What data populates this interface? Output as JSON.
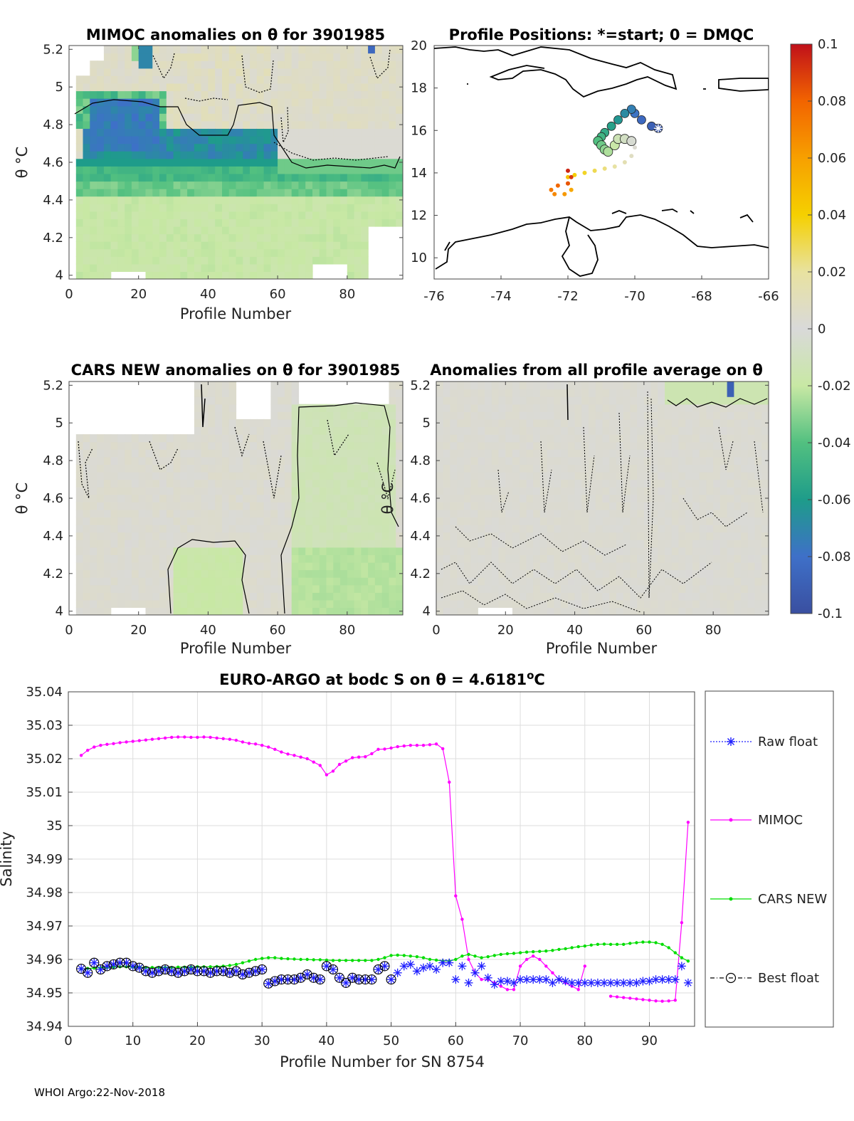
{
  "footer": "WHOI Argo:22-Nov-2018",
  "colors": {
    "raw": "#1f1fff",
    "mimoc": "#ff00ff",
    "cars": "#00dd00",
    "best": "#000000",
    "land": "#000000",
    "grid": "#dddddd"
  },
  "colormap": [
    {
      "v": -0.1,
      "c": "#3a4fa0"
    },
    {
      "v": -0.08,
      "c": "#3e70c8"
    },
    {
      "v": -0.06,
      "c": "#1e9c8a"
    },
    {
      "v": -0.04,
      "c": "#52c080"
    },
    {
      "v": -0.02,
      "c": "#c8e8a4"
    },
    {
      "v": 0,
      "c": "#d9d9d9"
    },
    {
      "v": 0.02,
      "c": "#e8e2a0"
    },
    {
      "v": 0.04,
      "c": "#f5d000"
    },
    {
      "v": 0.06,
      "c": "#f7a000"
    },
    {
      "v": 0.08,
      "c": "#f26400"
    },
    {
      "v": 0.1,
      "c": "#c0101a"
    }
  ],
  "colorbar": {
    "ticks": [
      "0.1",
      "0.08",
      "0.06",
      "0.04",
      "0.02",
      "0",
      "-0.02",
      "-0.04",
      "-0.06",
      "-0.08",
      "-0.1"
    ]
  },
  "chart_data": [
    {
      "id": "mimoc",
      "type": "heatmap",
      "title": "MIMOC anomalies on θ  for 3901985",
      "xlabel": "Profile Number",
      "ylabel": "θ °C",
      "xlim": [
        0,
        96
      ],
      "ylim": [
        3.98,
        5.22
      ],
      "xticks": [
        "0",
        "20",
        "40",
        "60",
        "80"
      ],
      "yticks": [
        "4",
        "4.2",
        "4.4",
        "4.6",
        "4.8",
        "5",
        "5.2"
      ]
    },
    {
      "id": "map",
      "type": "scatter",
      "title": "Profile Positions: *=start; 0 = DMQC",
      "xlim": [
        -76,
        -66
      ],
      "ylim": [
        9,
        20
      ],
      "xticks": [
        "-76",
        "-74",
        "-72",
        "-70",
        "-68",
        "-66"
      ],
      "yticks": [
        "10",
        "12",
        "14",
        "16",
        "18",
        "20"
      ],
      "track": [
        [
          -69.3,
          16.1
        ],
        [
          -69.5,
          16.2
        ],
        [
          -69.8,
          16.5
        ],
        [
          -70.0,
          16.8
        ],
        [
          -70.1,
          17.0
        ],
        [
          -70.3,
          16.8
        ],
        [
          -70.5,
          16.5
        ],
        [
          -70.7,
          16.2
        ],
        [
          -70.9,
          15.9
        ],
        [
          -71.0,
          15.7
        ],
        [
          -71.1,
          15.5
        ],
        [
          -71.0,
          15.3
        ],
        [
          -70.9,
          15.1
        ],
        [
          -70.8,
          15.0
        ],
        [
          -70.6,
          15.3
        ],
        [
          -70.5,
          15.6
        ],
        [
          -70.3,
          15.6
        ],
        [
          -70.1,
          15.5
        ],
        [
          -70.0,
          15.2
        ],
        [
          -70.1,
          14.8
        ],
        [
          -70.3,
          14.5
        ],
        [
          -70.6,
          14.3
        ],
        [
          -70.9,
          14.2
        ],
        [
          -71.2,
          14.1
        ],
        [
          -71.5,
          14.0
        ],
        [
          -71.8,
          13.9
        ],
        [
          -72.0,
          13.8
        ],
        [
          -72.0,
          13.5
        ],
        [
          -71.9,
          13.2
        ],
        [
          -72.1,
          13.0
        ],
        [
          -72.4,
          13.0
        ],
        [
          -72.5,
          13.2
        ],
        [
          -72.3,
          13.4
        ],
        [
          -72.0,
          13.5
        ],
        [
          -71.9,
          13.8
        ],
        [
          -72.0,
          14.1
        ]
      ]
    },
    {
      "id": "cars",
      "type": "heatmap",
      "title": "CARS NEW anomalies on θ for 3901985",
      "xlabel": "Profile Number",
      "ylabel": "θ °C",
      "xlim": [
        0,
        96
      ],
      "ylim": [
        3.98,
        5.22
      ],
      "xticks": [
        "0",
        "20",
        "40",
        "60",
        "80"
      ],
      "yticks": [
        "4",
        "4.2",
        "4.4",
        "4.6",
        "4.8",
        "5",
        "5.2"
      ]
    },
    {
      "id": "avg",
      "type": "heatmap",
      "title": "Anomalies from all profile average on θ",
      "xlabel": "Profile Number",
      "ylabel": "θ °C",
      "xlim": [
        0,
        96
      ],
      "ylim": [
        3.98,
        5.22
      ],
      "xticks": [
        "0",
        "20",
        "40",
        "60",
        "80"
      ],
      "yticks": [
        "4",
        "4.2",
        "4.4",
        "4.6",
        "4.8",
        "5",
        "5.2"
      ]
    },
    {
      "id": "salinity",
      "type": "line",
      "title": "EURO-ARGO at bodc S on θ = 4.6181",
      "title_sup": "o",
      "title_unit": "C",
      "xlabel": "Profile Number for SN 8754",
      "ylabel": "Salinity",
      "xlim": [
        0,
        97
      ],
      "ylim": [
        34.94,
        35.04
      ],
      "xticks": [
        "0",
        "10",
        "20",
        "30",
        "40",
        "50",
        "60",
        "70",
        "80",
        "90"
      ],
      "yticks": [
        "34.94",
        "34.95",
        "34.96",
        "34.97",
        "34.98",
        "34.99",
        "35",
        "35.01",
        "35.02",
        "35.03",
        "35.04"
      ],
      "legend": [
        "Raw float",
        "MIMOC",
        "CARS NEW",
        "Best float"
      ],
      "series": [
        {
          "name": "MIMOC",
          "x": [
            2,
            3,
            4,
            5,
            6,
            7,
            8,
            9,
            10,
            11,
            12,
            13,
            14,
            15,
            16,
            17,
            18,
            19,
            20,
            21,
            22,
            23,
            24,
            25,
            26,
            27,
            28,
            29,
            30,
            31,
            32,
            33,
            34,
            35,
            36,
            37,
            38,
            39,
            40,
            41,
            42,
            43,
            44,
            45,
            46,
            47,
            48,
            49,
            50,
            51,
            52,
            53,
            54,
            55,
            56,
            57,
            58,
            59,
            60,
            61,
            62,
            63,
            64,
            65,
            66,
            67,
            68,
            69,
            70,
            71,
            72,
            73,
            74,
            75,
            76,
            77,
            78,
            79,
            80,
            null,
            84,
            85,
            86,
            87,
            88,
            89,
            90,
            91,
            92,
            93,
            94,
            95,
            96
          ],
          "y": [
            35.021,
            35.0225,
            35.0235,
            35.024,
            35.0243,
            35.0245,
            35.0248,
            35.025,
            35.0252,
            35.0254,
            35.0256,
            35.0258,
            35.026,
            35.0262,
            35.0264,
            35.0265,
            35.0265,
            35.0264,
            35.0264,
            35.0265,
            35.0264,
            35.0262,
            35.026,
            35.0258,
            35.0255,
            35.025,
            35.0246,
            35.0244,
            35.024,
            35.0235,
            35.0228,
            35.022,
            35.0214,
            35.021,
            35.0205,
            35.02,
            35.019,
            35.018,
            35.0152,
            35.0163,
            35.0183,
            35.0193,
            35.0203,
            35.0205,
            35.0206,
            35.0215,
            35.0228,
            35.0229,
            35.0232,
            35.0236,
            35.0238,
            35.024,
            35.024,
            35.024,
            35.0242,
            35.0244,
            35.023,
            35.013,
            34.979,
            34.972,
            34.96,
            34.956,
            34.954,
            34.954,
            34.953,
            34.952,
            34.951,
            34.951,
            34.958,
            34.96,
            34.961,
            34.96,
            34.958,
            34.956,
            34.954,
            34.953,
            34.952,
            34.951,
            34.958,
            null,
            34.949,
            34.9488,
            34.9486,
            34.9484,
            34.9482,
            34.948,
            34.9478,
            34.9476,
            34.9475,
            34.9476,
            34.9478,
            34.971,
            35.001
          ]
        },
        {
          "name": "CARS NEW",
          "x": [
            2,
            3,
            4,
            5,
            6,
            7,
            8,
            9,
            10,
            11,
            12,
            13,
            14,
            15,
            16,
            17,
            18,
            19,
            20,
            21,
            22,
            23,
            24,
            25,
            26,
            27,
            28,
            29,
            30,
            31,
            32,
            33,
            34,
            35,
            36,
            37,
            38,
            39,
            40,
            41,
            42,
            43,
            44,
            45,
            46,
            47,
            48,
            49,
            50,
            51,
            52,
            53,
            54,
            55,
            56,
            57,
            58,
            59,
            60,
            61,
            62,
            63,
            64,
            65,
            66,
            67,
            68,
            69,
            70,
            71,
            72,
            73,
            74,
            75,
            76,
            77,
            78,
            79,
            80,
            81,
            82,
            83,
            84,
            85,
            86,
            87,
            88,
            89,
            90,
            91,
            92,
            93,
            94,
            95,
            96
          ],
          "y": [
            34.9572,
            34.9573,
            34.9574,
            34.9575,
            34.9576,
            34.9577,
            34.9578,
            34.9578,
            34.9577,
            34.9577,
            34.9576,
            34.9576,
            34.9576,
            34.9576,
            34.9576,
            34.9577,
            34.9577,
            34.9577,
            34.9578,
            34.9578,
            34.9578,
            34.9579,
            34.958,
            34.9582,
            34.9585,
            34.959,
            34.9595,
            34.96,
            34.9603,
            34.9605,
            34.9605,
            34.9603,
            34.9602,
            34.9601,
            34.96,
            34.96,
            34.9599,
            34.9599,
            34.9598,
            34.9597,
            34.9597,
            34.9597,
            34.9597,
            34.9597,
            34.9597,
            34.9597,
            34.96,
            34.9605,
            34.9612,
            34.9613,
            34.9612,
            34.961,
            34.9608,
            34.9605,
            34.96,
            34.9598,
            34.9595,
            34.9595,
            34.96,
            34.961,
            34.9615,
            34.961,
            34.9605,
            34.9608,
            34.9612,
            34.9615,
            34.9617,
            34.9618,
            34.962,
            34.9622,
            34.9623,
            34.9624,
            34.9625,
            34.9627,
            34.963,
            34.9632,
            34.9635,
            34.9638,
            34.964,
            34.9643,
            34.9645,
            34.9646,
            34.9645,
            34.9645,
            34.9645,
            34.9648,
            34.965,
            34.9652,
            34.9652,
            34.965,
            34.9645,
            34.9635,
            34.962,
            34.9605,
            34.9595
          ]
        },
        {
          "name": "Raw float",
          "x": [
            2,
            3,
            4,
            5,
            6,
            7,
            8,
            9,
            10,
            11,
            12,
            13,
            14,
            15,
            16,
            17,
            18,
            19,
            20,
            21,
            22,
            23,
            24,
            25,
            26,
            27,
            28,
            29,
            30,
            31,
            32,
            33,
            34,
            35,
            36,
            37,
            38,
            39,
            40,
            41,
            42,
            43,
            44,
            45,
            46,
            47,
            48,
            49,
            50,
            51,
            52,
            53,
            54,
            55,
            56,
            57,
            58,
            59,
            60,
            61,
            62,
            63,
            64,
            65,
            66,
            67,
            68,
            69,
            70,
            71,
            72,
            73,
            74,
            75,
            76,
            77,
            78,
            79,
            80,
            81,
            82,
            83,
            84,
            85,
            86,
            87,
            88,
            89,
            90,
            91,
            92,
            93,
            94,
            95,
            96
          ],
          "y": [
            34.9572,
            34.956,
            34.959,
            34.957,
            34.958,
            34.9585,
            34.959,
            34.959,
            34.958,
            34.9575,
            34.9565,
            34.956,
            34.9565,
            34.957,
            34.9565,
            34.956,
            34.9565,
            34.957,
            34.9565,
            34.9565,
            34.956,
            34.9565,
            34.9565,
            34.956,
            34.9565,
            34.9555,
            34.956,
            34.9565,
            34.957,
            34.9528,
            34.9535,
            34.954,
            34.954,
            34.954,
            34.9545,
            34.9555,
            34.9545,
            34.954,
            34.958,
            34.957,
            34.9545,
            34.953,
            34.9545,
            34.954,
            34.954,
            34.954,
            34.957,
            34.958,
            34.954,
            34.956,
            34.958,
            34.9585,
            34.9565,
            34.9575,
            34.958,
            34.957,
            34.959,
            34.959,
            34.954,
            34.958,
            34.953,
            34.956,
            34.958,
            34.9545,
            34.9525,
            34.9535,
            34.9535,
            34.953,
            34.954,
            34.954,
            34.954,
            34.954,
            34.954,
            34.953,
            34.954,
            34.9535,
            34.953,
            34.953,
            34.953,
            34.953,
            34.953,
            34.953,
            34.953,
            34.953,
            34.953,
            34.953,
            34.953,
            34.9535,
            34.9535,
            34.954,
            34.954,
            34.954,
            34.954,
            34.958,
            34.953
          ]
        },
        {
          "name": "Best float",
          "x": [
            2,
            3,
            4,
            5,
            6,
            7,
            8,
            9,
            10,
            11,
            12,
            13,
            14,
            15,
            16,
            17,
            18,
            19,
            20,
            21,
            22,
            23,
            24,
            25,
            26,
            27,
            28,
            29,
            30,
            31,
            32,
            33,
            34,
            35,
            36,
            37,
            38,
            39,
            40,
            41,
            42,
            43,
            44,
            45,
            46,
            47,
            48,
            49,
            50
          ],
          "y": [
            34.9572,
            34.956,
            34.959,
            34.957,
            34.958,
            34.9585,
            34.959,
            34.959,
            34.958,
            34.9575,
            34.9565,
            34.956,
            34.9565,
            34.957,
            34.9565,
            34.956,
            34.9565,
            34.957,
            34.9565,
            34.9565,
            34.956,
            34.9565,
            34.9565,
            34.956,
            34.9565,
            34.9555,
            34.956,
            34.9565,
            34.957,
            34.9528,
            34.9535,
            34.954,
            34.954,
            34.954,
            34.9545,
            34.9555,
            34.9545,
            34.954,
            34.958,
            34.957,
            34.9545,
            34.953,
            34.9545,
            34.954,
            34.954,
            34.954,
            34.957,
            34.958,
            34.954
          ]
        }
      ]
    }
  ]
}
